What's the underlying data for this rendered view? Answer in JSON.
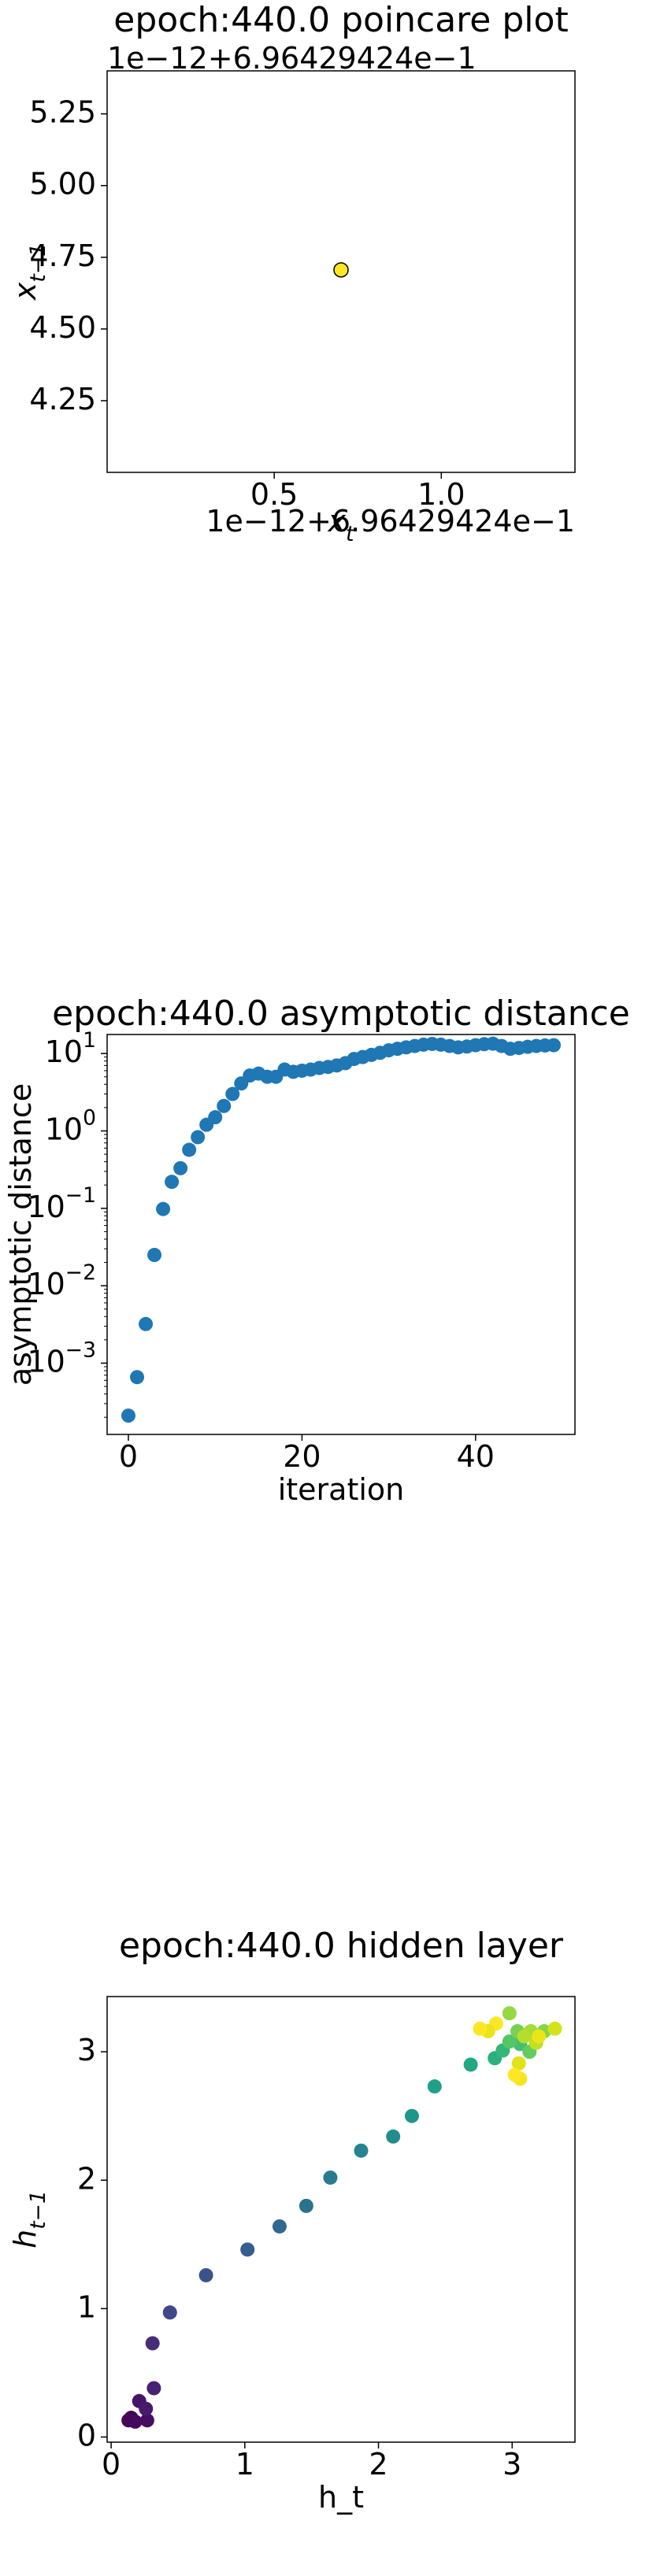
{
  "chart_data": [
    {
      "type": "scatter",
      "title": "epoch:440.0 poincare plot",
      "xlabel": "x_{t}",
      "ylabel": "x_{t−1}",
      "x_offset_text": "1e−12+6.96429424e−1",
      "y_offset_text": "1e−12+6.96429424e−1",
      "x": [
        0.7
      ],
      "values": [
        4.706
      ],
      "colors": [
        "#fde725"
      ],
      "edgecolor": "#000000",
      "xlim": [
        0,
        1.4
      ],
      "xticks": [
        0.5,
        {
          "value": 1,
          "label": "1.0"
        }
      ],
      "ylim": [
        4.0,
        5.4
      ],
      "yticks": [
        4.25,
        {
          "value": 4.5,
          "label": "4.50"
        },
        4.75,
        {
          "value": 5,
          "label": "5.00"
        },
        5.25
      ]
    },
    {
      "type": "scatter",
      "title": "epoch:440.0 asymptotic distance",
      "xlabel": "iteration",
      "ylabel": "asymptotic distance",
      "log_y": true,
      "x": [
        0,
        1,
        2,
        3,
        4,
        5,
        6,
        7,
        8,
        9,
        10,
        11,
        12,
        13,
        14,
        15,
        16,
        17,
        18,
        19,
        20,
        21,
        22,
        23,
        24,
        25,
        26,
        27,
        28,
        29,
        30,
        31,
        32,
        33,
        34,
        35,
        36,
        37,
        38,
        39,
        40,
        41,
        42,
        43,
        44,
        45,
        46,
        47,
        48,
        49
      ],
      "values": [
        0.00021,
        0.00066,
        0.0032,
        0.025,
        0.098,
        0.22,
        0.33,
        0.57,
        0.83,
        1.2,
        1.5,
        2.1,
        3.0,
        4.1,
        5.2,
        5.5,
        5.0,
        5.0,
        6.2,
        5.8,
        6.0,
        6.2,
        6.5,
        6.7,
        7.0,
        7.5,
        8.5,
        9.0,
        9.6,
        10.2,
        11.0,
        11.5,
        12.0,
        12.5,
        13.0,
        13.3,
        13.0,
        12.5,
        12.0,
        12.3,
        12.8,
        13.2,
        13.4,
        12.5,
        11.5,
        11.8,
        12.2,
        12.5,
        12.7,
        12.8
      ],
      "color": "#1f77b4",
      "xlim": [
        -2.45,
        51.45
      ],
      "xticks": [
        0,
        20,
        40
      ],
      "ylim": [
        0.00012,
        17.6
      ],
      "yticks": [
        {
          "value": 0.001,
          "label": "10^{−3}"
        },
        {
          "value": 0.01,
          "label": "10^{−2}"
        },
        {
          "value": 0.1,
          "label": "10^{−1}"
        },
        {
          "value": 1,
          "label": "10^{0}"
        },
        {
          "value": 10,
          "label": "10^{1}"
        }
      ]
    },
    {
      "type": "scatter",
      "title": "epoch:440.0 hidden layer",
      "xlabel": "h_t",
      "ylabel": "h_{t−1}",
      "x": [
        0.15,
        0.13,
        0.18,
        0.27,
        0.21,
        0.26,
        0.32,
        0.31,
        0.44,
        0.71,
        1.02,
        1.26,
        1.46,
        1.64,
        1.87,
        2.11,
        2.25,
        2.42,
        2.69,
        2.87,
        2.93,
        3.06,
        2.98,
        3.13,
        3.04,
        3.24,
        2.98,
        3.14,
        3.09,
        3.18,
        3.32,
        3.05,
        3.2,
        2.88,
        3.06,
        3.02,
        2.82,
        2.76
      ],
      "values": [
        0.15,
        0.13,
        0.12,
        0.13,
        0.28,
        0.22,
        0.38,
        0.73,
        0.97,
        1.26,
        1.46,
        1.64,
        1.8,
        2.02,
        2.23,
        2.34,
        2.5,
        2.73,
        2.9,
        2.95,
        3.01,
        3.06,
        3.08,
        3.0,
        3.16,
        3.16,
        3.3,
        3.16,
        3.12,
        3.07,
        3.18,
        2.91,
        3.12,
        3.22,
        2.79,
        2.82,
        3.16,
        3.18
      ],
      "colors": [
        "#440154",
        "#450559",
        "#46085c",
        "#470d60",
        "#481467",
        "#481a6c",
        "#482173",
        "#472c7a",
        "#3f4889",
        "#3b528b",
        "#365d8d",
        "#31688e",
        "#2c728e",
        "#297b8e",
        "#25848e",
        "#228d8d",
        "#1f968b",
        "#1fa088",
        "#22a884",
        "#2ab07f",
        "#35b779",
        "#44bf70",
        "#54c568",
        "#65cb5e",
        "#75d054",
        "#86d549",
        "#95d840",
        "#a5db36",
        "#b5de2b",
        "#c2df23",
        "#d2e21b",
        "#dfe318",
        "#eae51a",
        "#fde725",
        "#f4e61e",
        "#fde725",
        "#e8e419",
        "#fde725"
      ],
      "xlim": [
        -0.03,
        3.47
      ],
      "xticks": [
        0,
        1,
        2,
        3
      ],
      "ylim": [
        -0.04,
        3.43
      ],
      "yticks": [
        0,
        1,
        2,
        3
      ]
    }
  ]
}
